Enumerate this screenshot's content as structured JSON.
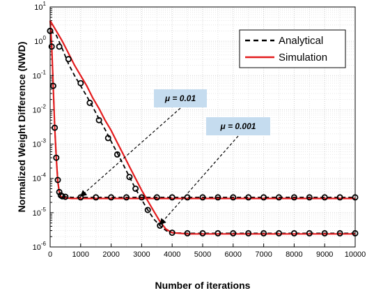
{
  "chart_data": {
    "type": "line",
    "xlabel": "Number of iterations",
    "ylabel": "Normalized Weight Difference (NWD)",
    "xlim": [
      0,
      10000
    ],
    "ylim_exp": [
      -6,
      1
    ],
    "yscale": "log",
    "x_ticks": [
      "0",
      "1000",
      "2000",
      "3000",
      "4000",
      "5000",
      "6000",
      "7000",
      "8000",
      "9000",
      "10000"
    ],
    "y_ticks": [
      {
        "base": "10",
        "exp": "1"
      },
      {
        "base": "10",
        "exp": "0"
      },
      {
        "base": "10",
        "exp": "-1"
      },
      {
        "base": "10",
        "exp": "-2"
      },
      {
        "base": "10",
        "exp": "-3"
      },
      {
        "base": "10",
        "exp": "-4"
      },
      {
        "base": "10",
        "exp": "-5"
      },
      {
        "base": "10",
        "exp": "-6"
      }
    ],
    "grid": true,
    "legend": {
      "position": "top-right",
      "entries": [
        "Analytical",
        "Simulation"
      ]
    },
    "colors": {
      "analytical": "#000000",
      "simulation": "#e31a1c",
      "annotation_fill": "#c5dcef"
    },
    "annotations": [
      {
        "text": "μ = 0.01",
        "points_to": {
          "x": 1000,
          "y": 3e-05
        }
      },
      {
        "text": "μ = 0.001",
        "points_to": {
          "x": 3600,
          "y": 4.5e-06
        }
      }
    ],
    "series": [
      {
        "name": "Analytical",
        "style": "dashed",
        "curves": [
          {
            "x": [
              0,
              50,
              100,
              150,
              200,
              250,
              300,
              350,
              400,
              500,
              700,
              1000,
              2000,
              3000,
              4000,
              5000,
              6000,
              7000,
              8000,
              9000,
              10000
            ],
            "y": [
              2.0,
              0.7,
              0.05,
              0.003,
              0.0004,
              9e-05,
              4e-05,
              3.2e-05,
              3e-05,
              2.9e-05,
              2.8e-05,
              2.8e-05,
              2.8e-05,
              2.8e-05,
              2.8e-05,
              2.8e-05,
              2.8e-05,
              2.8e-05,
              2.8e-05,
              2.8e-05,
              2.8e-05
            ]
          },
          {
            "x": [
              0,
              200,
              400,
              600,
              800,
              1000,
              1200,
              1400,
              1600,
              1800,
              2000,
              2200,
              2400,
              2600,
              2800,
              3000,
              3200,
              3400,
              3600,
              3800,
              4000,
              4500,
              5000,
              6000,
              7000,
              8000,
              9000,
              10000
            ],
            "y": [
              2.0,
              1.5,
              0.6,
              0.22,
              0.1,
              0.05,
              0.025,
              0.012,
              0.0055,
              0.0027,
              0.0012,
              0.00055,
              0.00025,
              0.00011,
              5e-05,
              2.4e-05,
              1.2e-05,
              6.5e-06,
              4.2e-06,
              3e-06,
              2.6e-06,
              2.5e-06,
              2.5e-06,
              2.5e-06,
              2.5e-06,
              2.5e-06,
              2.5e-06,
              2.5e-06
            ]
          }
        ]
      },
      {
        "name": "Simulation",
        "style": "solid",
        "curves": [
          {
            "x": [
              0,
              50,
              100,
              150,
              200,
              250,
              300,
              350,
              400,
              500,
              700,
              1000,
              2000,
              3000,
              4000,
              5000,
              6000,
              7000,
              8000,
              9000,
              10000
            ],
            "y": [
              4.0,
              0.8,
              0.05,
              0.003,
              0.0004,
              8e-05,
              4e-05,
              3e-05,
              2.8e-05,
              2.7e-05,
              2.6e-05,
              2.6e-05,
              2.6e-05,
              2.6e-05,
              2.6e-05,
              2.6e-05,
              2.6e-05,
              2.6e-05,
              2.6e-05,
              2.6e-05,
              2.6e-05
            ]
          },
          {
            "x": [
              0,
              200,
              400,
              600,
              800,
              1000,
              1200,
              1400,
              1600,
              1800,
              2000,
              2200,
              2400,
              2600,
              2800,
              3000,
              3200,
              3400,
              3600,
              3800,
              4000,
              4500,
              5000,
              6000,
              7000,
              8000,
              9000,
              10000
            ],
            "y": [
              4.0,
              2.0,
              1.0,
              0.45,
              0.2,
              0.1,
              0.05,
              0.022,
              0.011,
              0.005,
              0.0025,
              0.0011,
              0.0005,
              0.00022,
              0.0001,
              4.5e-05,
              2.2e-05,
              1.1e-05,
              5.5e-06,
              3.3e-06,
              2.6e-06,
              2.4e-06,
              2.4e-06,
              2.4e-06,
              2.4e-06,
              2.4e-06,
              2.4e-06,
              2.4e-06
            ]
          }
        ]
      }
    ],
    "markers": [
      {
        "x": [
          0,
          50,
          100,
          150,
          200,
          250,
          300,
          350,
          400,
          500,
          1000,
          1500,
          2000,
          2500,
          3000,
          3500,
          4000,
          4500,
          5000,
          5500,
          6000,
          6500,
          7000,
          7500,
          8000,
          8500,
          9000,
          9500,
          10000
        ],
        "y": [
          2.0,
          0.7,
          0.05,
          0.003,
          0.0004,
          9e-05,
          4e-05,
          3.2e-05,
          3e-05,
          2.9e-05,
          2.8e-05,
          2.8e-05,
          2.8e-05,
          2.8e-05,
          2.8e-05,
          2.8e-05,
          2.8e-05,
          2.8e-05,
          2.8e-05,
          2.8e-05,
          2.8e-05,
          2.8e-05,
          2.8e-05,
          2.8e-05,
          2.8e-05,
          2.8e-05,
          2.8e-05,
          2.8e-05,
          2.8e-05
        ]
      },
      {
        "x": [
          0,
          300,
          600,
          1000,
          1300,
          1600,
          1900,
          2200,
          2600,
          2800,
          3200,
          3600,
          4000,
          4500,
          5000,
          5500,
          6000,
          6500,
          7000,
          7500,
          8000,
          8500,
          9000,
          9500,
          10000
        ],
        "y": [
          2.0,
          0.7,
          0.3,
          0.06,
          0.016,
          0.005,
          0.0015,
          0.0005,
          0.00011,
          5e-05,
          1.2e-05,
          4.2e-06,
          2.6e-06,
          2.5e-06,
          2.5e-06,
          2.5e-06,
          2.5e-06,
          2.5e-06,
          2.5e-06,
          2.5e-06,
          2.5e-06,
          2.5e-06,
          2.5e-06,
          2.5e-06,
          2.5e-06
        ]
      }
    ]
  }
}
